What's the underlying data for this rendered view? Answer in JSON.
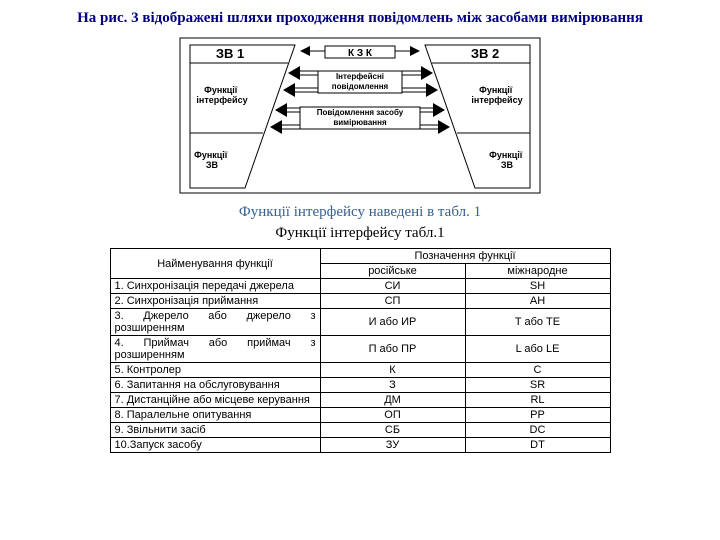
{
  "title": "На рис. 3 відображені шляхи проходження повідомлень між засобами вимірювання",
  "diagram": {
    "zv1": "ЗВ 1",
    "zv2": "ЗВ 2",
    "kzk": "К З К",
    "interface_msg": "Інтерфейсні повідомлення",
    "device_msg": "Повідомлення засобу вимірювання",
    "fi_left": "Функції інтерфейсу",
    "fi_right": "Функції інтерфейсу",
    "fz_left": "Функції ЗВ",
    "fz_right": "Функції ЗВ",
    "stroke": "#000000",
    "fill_box": "#ffffff"
  },
  "caption1": "Функції інтерфейсу наведені в табл. 1",
  "caption2": "Функції інтерфейсу табл.1",
  "table": {
    "header_name": "Найменування функції",
    "header_mark": "Позначення функції",
    "header_ru": "російське",
    "header_int": "міжнародне",
    "rows": [
      {
        "n": "1. Синхронізація передачі джерела",
        "ru": "СИ",
        "int": "SH"
      },
      {
        "n": "2. Синхронізація приймання",
        "ru": "СП",
        "int": "AH"
      },
      {
        "n": "3. Джерело або джерело з розширенням",
        "ru": "И або ИР",
        "int": "T або TE"
      },
      {
        "n": "4. Приймач або приймач з розширенням",
        "ru": "П або ПР",
        "int": "L або LE"
      },
      {
        "n": "5. Контролер",
        "ru": "К",
        "int": "C"
      },
      {
        "n": "6. Запитання на обслуговування",
        "ru": "З",
        "int": "SR"
      },
      {
        "n": "7. Дистанційне або місцеве керування",
        "ru": "ДМ",
        "int": "RL"
      },
      {
        "n": "8. Паралельне опитування",
        "ru": "ОП",
        "int": "PP"
      },
      {
        "n": "9. Звільнити засіб",
        "ru": "СБ",
        "int": "DC"
      },
      {
        "n": "10.Запуск засобу",
        "ru": "ЗУ",
        "int": "DT"
      }
    ]
  }
}
